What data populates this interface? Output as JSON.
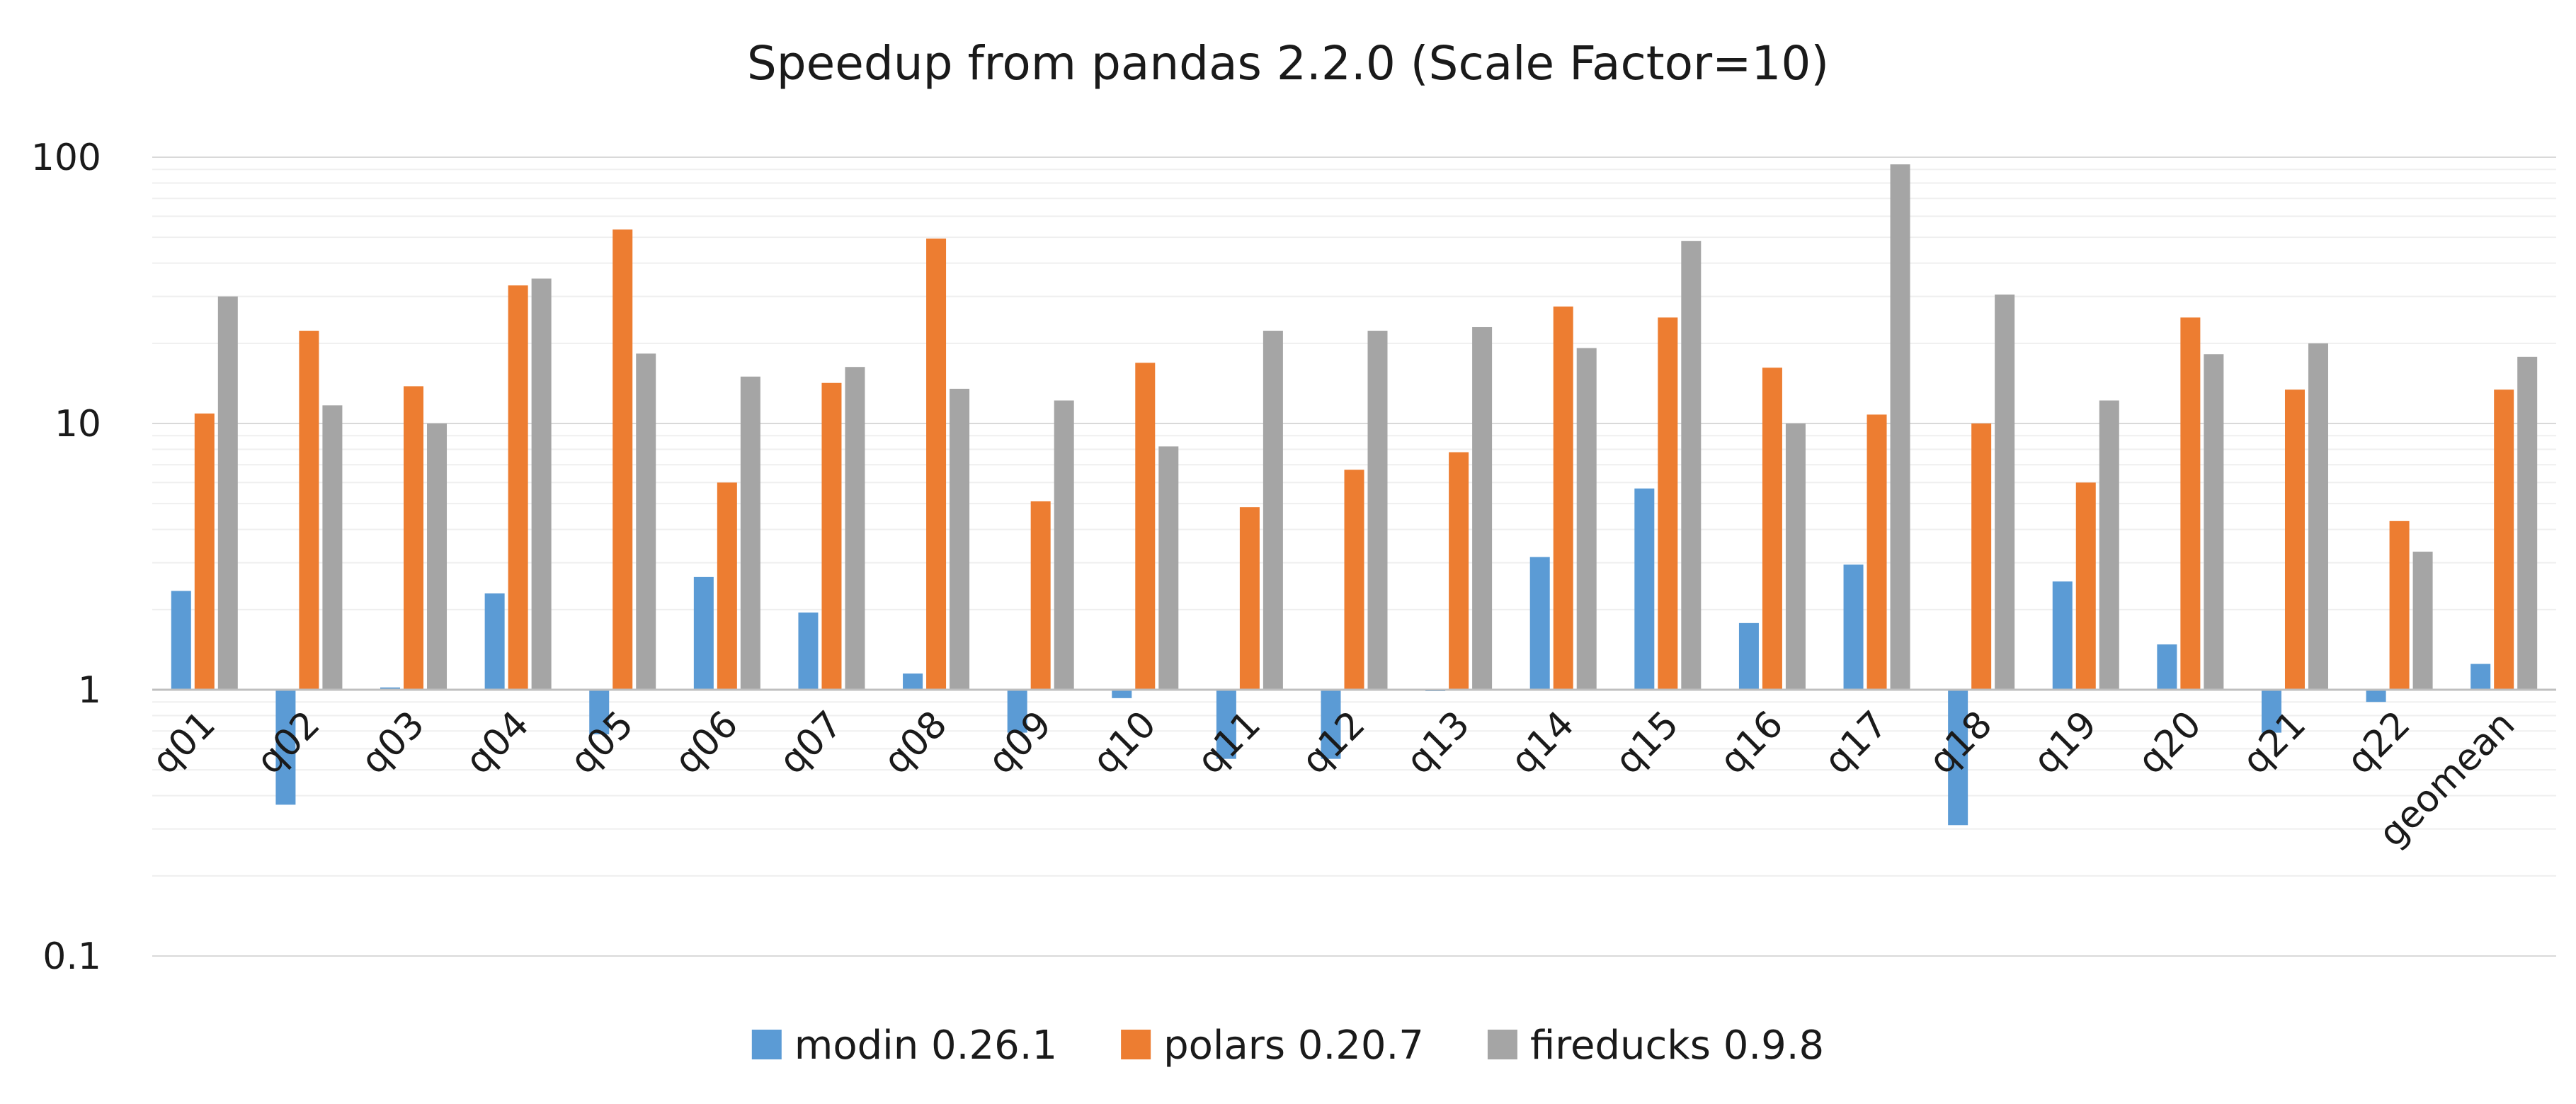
{
  "chart_data": {
    "type": "bar",
    "title": "Speedup from pandas 2.2.0 (Scale Factor=10)",
    "xlabel": "",
    "ylabel": "",
    "y_scale": "log",
    "ylim": [
      0.1,
      100
    ],
    "baseline": 1,
    "y_ticks": [
      {
        "value": 100,
        "label": "100"
      },
      {
        "value": 10,
        "label": "10"
      },
      {
        "value": 1,
        "label": "1"
      },
      {
        "value": 0.1,
        "label": "0.1"
      }
    ],
    "grid": true,
    "legend": "bottom",
    "categories": [
      "q01",
      "q02",
      "q03",
      "q04",
      "q05",
      "q06",
      "q07",
      "q08",
      "q09",
      "q10",
      "q11",
      "q12",
      "q13",
      "q14",
      "q15",
      "q16",
      "q17",
      "q18",
      "q19",
      "q20",
      "q21",
      "q22",
      "geomean"
    ],
    "series": [
      {
        "name": "modin 0.26.1",
        "color": "#5b9bd5",
        "values": [
          2.35,
          0.37,
          1.02,
          2.3,
          0.68,
          2.65,
          1.95,
          1.15,
          0.69,
          0.93,
          0.55,
          0.55,
          1.0,
          3.15,
          5.7,
          1.78,
          2.95,
          0.31,
          2.55,
          1.48,
          0.69,
          0.9,
          1.25
        ]
      },
      {
        "name": "polars 0.20.7",
        "color": "#ed7d31",
        "values": [
          10.9,
          22.3,
          13.8,
          33,
          53.5,
          6.0,
          14.2,
          49.5,
          5.1,
          16.9,
          4.85,
          6.7,
          7.8,
          27.5,
          25,
          16.2,
          10.8,
          10,
          6.0,
          25,
          13.4,
          4.3,
          13.4
        ]
      },
      {
        "name": "fireducks 0.9.8",
        "color": "#a5a5a5",
        "values": [
          30,
          11.7,
          10,
          35,
          18.3,
          15,
          16.3,
          13.5,
          12.2,
          8.2,
          22.3,
          22.3,
          23,
          19.2,
          48.5,
          10,
          94,
          30.5,
          12.2,
          18.2,
          20,
          3.3,
          17.8
        ]
      }
    ]
  }
}
